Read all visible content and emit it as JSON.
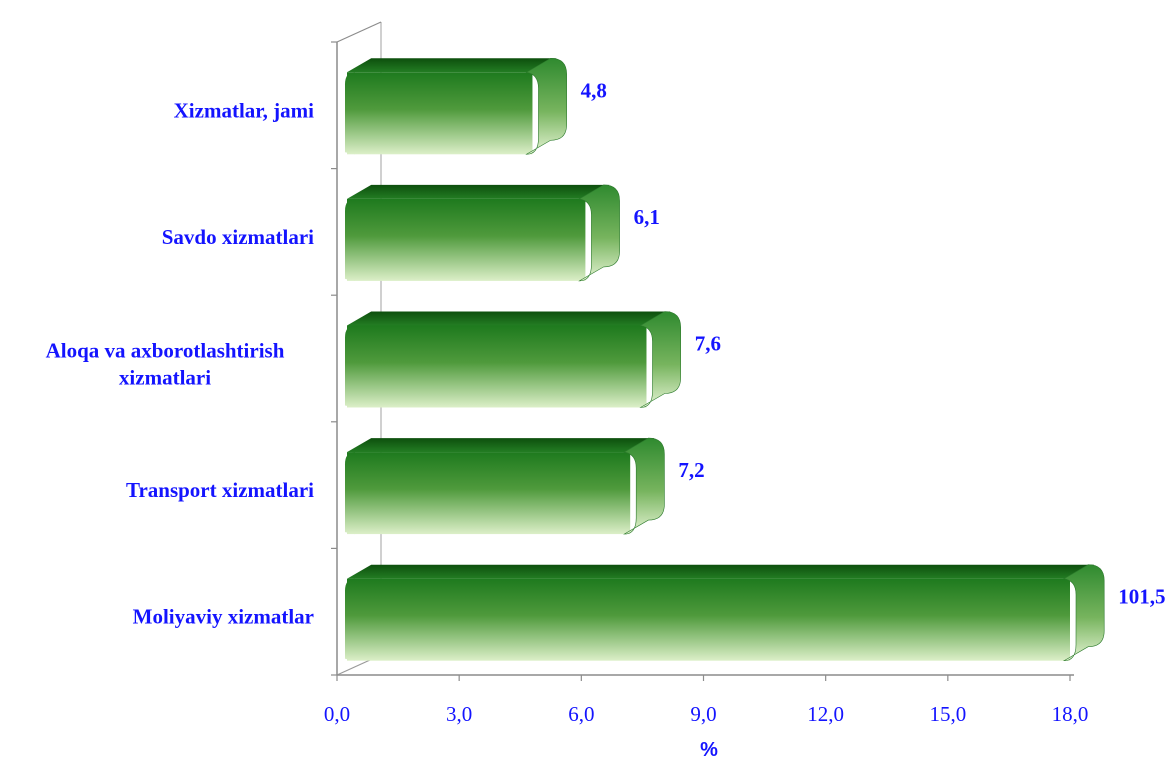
{
  "chart_data": {
    "type": "bar",
    "orientation": "horizontal",
    "categories": [
      "Xizmatlar, jami",
      "Savdo xizmatlari",
      "Aloqa va axborotlashtirish xizmatlari",
      "Transport xizmatlari",
      "Moliyaviy xizmatlar"
    ],
    "values": [
      4.8,
      6.1,
      7.6,
      7.2,
      101.5
    ],
    "value_labels": [
      "4,8",
      "6,1",
      "7,6",
      "7,2",
      "101,5"
    ],
    "xlabel": "%",
    "xlim": [
      0,
      18
    ],
    "xticks": [
      "0,0",
      "3,0",
      "6,0",
      "9,0",
      "12,0",
      "15,0",
      "18,0"
    ],
    "grid": false,
    "bar_style": "3d-cylinder-gradient",
    "colors": {
      "bar_dark": "#0e5a0e",
      "bar_light": "#d9edc4",
      "text": "#1414ff"
    }
  }
}
